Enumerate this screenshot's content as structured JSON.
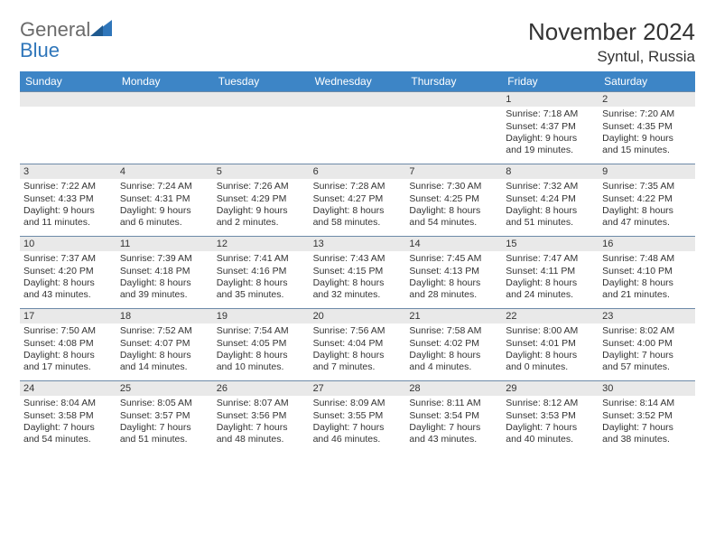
{
  "brand": {
    "word1": "General",
    "word2": "Blue"
  },
  "title": "November 2024",
  "location": "Syntul, Russia",
  "weekday_labels": [
    "Sunday",
    "Monday",
    "Tuesday",
    "Wednesday",
    "Thursday",
    "Friday",
    "Saturday"
  ],
  "colors": {
    "header_bg": "#3d85c6",
    "header_fg": "#ffffff",
    "daynum_bg": "#e9e9e9",
    "cell_border": "#6d8aa8",
    "brand_gray": "#6b6b6b",
    "brand_blue": "#2f76ba"
  },
  "first_weekday_index": 5,
  "days": [
    {
      "n": "1",
      "sunrise": "Sunrise: 7:18 AM",
      "sunset": "Sunset: 4:37 PM",
      "d1": "Daylight: 9 hours",
      "d2": "and 19 minutes."
    },
    {
      "n": "2",
      "sunrise": "Sunrise: 7:20 AM",
      "sunset": "Sunset: 4:35 PM",
      "d1": "Daylight: 9 hours",
      "d2": "and 15 minutes."
    },
    {
      "n": "3",
      "sunrise": "Sunrise: 7:22 AM",
      "sunset": "Sunset: 4:33 PM",
      "d1": "Daylight: 9 hours",
      "d2": "and 11 minutes."
    },
    {
      "n": "4",
      "sunrise": "Sunrise: 7:24 AM",
      "sunset": "Sunset: 4:31 PM",
      "d1": "Daylight: 9 hours",
      "d2": "and 6 minutes."
    },
    {
      "n": "5",
      "sunrise": "Sunrise: 7:26 AM",
      "sunset": "Sunset: 4:29 PM",
      "d1": "Daylight: 9 hours",
      "d2": "and 2 minutes."
    },
    {
      "n": "6",
      "sunrise": "Sunrise: 7:28 AM",
      "sunset": "Sunset: 4:27 PM",
      "d1": "Daylight: 8 hours",
      "d2": "and 58 minutes."
    },
    {
      "n": "7",
      "sunrise": "Sunrise: 7:30 AM",
      "sunset": "Sunset: 4:25 PM",
      "d1": "Daylight: 8 hours",
      "d2": "and 54 minutes."
    },
    {
      "n": "8",
      "sunrise": "Sunrise: 7:32 AM",
      "sunset": "Sunset: 4:24 PM",
      "d1": "Daylight: 8 hours",
      "d2": "and 51 minutes."
    },
    {
      "n": "9",
      "sunrise": "Sunrise: 7:35 AM",
      "sunset": "Sunset: 4:22 PM",
      "d1": "Daylight: 8 hours",
      "d2": "and 47 minutes."
    },
    {
      "n": "10",
      "sunrise": "Sunrise: 7:37 AM",
      "sunset": "Sunset: 4:20 PM",
      "d1": "Daylight: 8 hours",
      "d2": "and 43 minutes."
    },
    {
      "n": "11",
      "sunrise": "Sunrise: 7:39 AM",
      "sunset": "Sunset: 4:18 PM",
      "d1": "Daylight: 8 hours",
      "d2": "and 39 minutes."
    },
    {
      "n": "12",
      "sunrise": "Sunrise: 7:41 AM",
      "sunset": "Sunset: 4:16 PM",
      "d1": "Daylight: 8 hours",
      "d2": "and 35 minutes."
    },
    {
      "n": "13",
      "sunrise": "Sunrise: 7:43 AM",
      "sunset": "Sunset: 4:15 PM",
      "d1": "Daylight: 8 hours",
      "d2": "and 32 minutes."
    },
    {
      "n": "14",
      "sunrise": "Sunrise: 7:45 AM",
      "sunset": "Sunset: 4:13 PM",
      "d1": "Daylight: 8 hours",
      "d2": "and 28 minutes."
    },
    {
      "n": "15",
      "sunrise": "Sunrise: 7:47 AM",
      "sunset": "Sunset: 4:11 PM",
      "d1": "Daylight: 8 hours",
      "d2": "and 24 minutes."
    },
    {
      "n": "16",
      "sunrise": "Sunrise: 7:48 AM",
      "sunset": "Sunset: 4:10 PM",
      "d1": "Daylight: 8 hours",
      "d2": "and 21 minutes."
    },
    {
      "n": "17",
      "sunrise": "Sunrise: 7:50 AM",
      "sunset": "Sunset: 4:08 PM",
      "d1": "Daylight: 8 hours",
      "d2": "and 17 minutes."
    },
    {
      "n": "18",
      "sunrise": "Sunrise: 7:52 AM",
      "sunset": "Sunset: 4:07 PM",
      "d1": "Daylight: 8 hours",
      "d2": "and 14 minutes."
    },
    {
      "n": "19",
      "sunrise": "Sunrise: 7:54 AM",
      "sunset": "Sunset: 4:05 PM",
      "d1": "Daylight: 8 hours",
      "d2": "and 10 minutes."
    },
    {
      "n": "20",
      "sunrise": "Sunrise: 7:56 AM",
      "sunset": "Sunset: 4:04 PM",
      "d1": "Daylight: 8 hours",
      "d2": "and 7 minutes."
    },
    {
      "n": "21",
      "sunrise": "Sunrise: 7:58 AM",
      "sunset": "Sunset: 4:02 PM",
      "d1": "Daylight: 8 hours",
      "d2": "and 4 minutes."
    },
    {
      "n": "22",
      "sunrise": "Sunrise: 8:00 AM",
      "sunset": "Sunset: 4:01 PM",
      "d1": "Daylight: 8 hours",
      "d2": "and 0 minutes."
    },
    {
      "n": "23",
      "sunrise": "Sunrise: 8:02 AM",
      "sunset": "Sunset: 4:00 PM",
      "d1": "Daylight: 7 hours",
      "d2": "and 57 minutes."
    },
    {
      "n": "24",
      "sunrise": "Sunrise: 8:04 AM",
      "sunset": "Sunset: 3:58 PM",
      "d1": "Daylight: 7 hours",
      "d2": "and 54 minutes."
    },
    {
      "n": "25",
      "sunrise": "Sunrise: 8:05 AM",
      "sunset": "Sunset: 3:57 PM",
      "d1": "Daylight: 7 hours",
      "d2": "and 51 minutes."
    },
    {
      "n": "26",
      "sunrise": "Sunrise: 8:07 AM",
      "sunset": "Sunset: 3:56 PM",
      "d1": "Daylight: 7 hours",
      "d2": "and 48 minutes."
    },
    {
      "n": "27",
      "sunrise": "Sunrise: 8:09 AM",
      "sunset": "Sunset: 3:55 PM",
      "d1": "Daylight: 7 hours",
      "d2": "and 46 minutes."
    },
    {
      "n": "28",
      "sunrise": "Sunrise: 8:11 AM",
      "sunset": "Sunset: 3:54 PM",
      "d1": "Daylight: 7 hours",
      "d2": "and 43 minutes."
    },
    {
      "n": "29",
      "sunrise": "Sunrise: 8:12 AM",
      "sunset": "Sunset: 3:53 PM",
      "d1": "Daylight: 7 hours",
      "d2": "and 40 minutes."
    },
    {
      "n": "30",
      "sunrise": "Sunrise: 8:14 AM",
      "sunset": "Sunset: 3:52 PM",
      "d1": "Daylight: 7 hours",
      "d2": "and 38 minutes."
    }
  ]
}
